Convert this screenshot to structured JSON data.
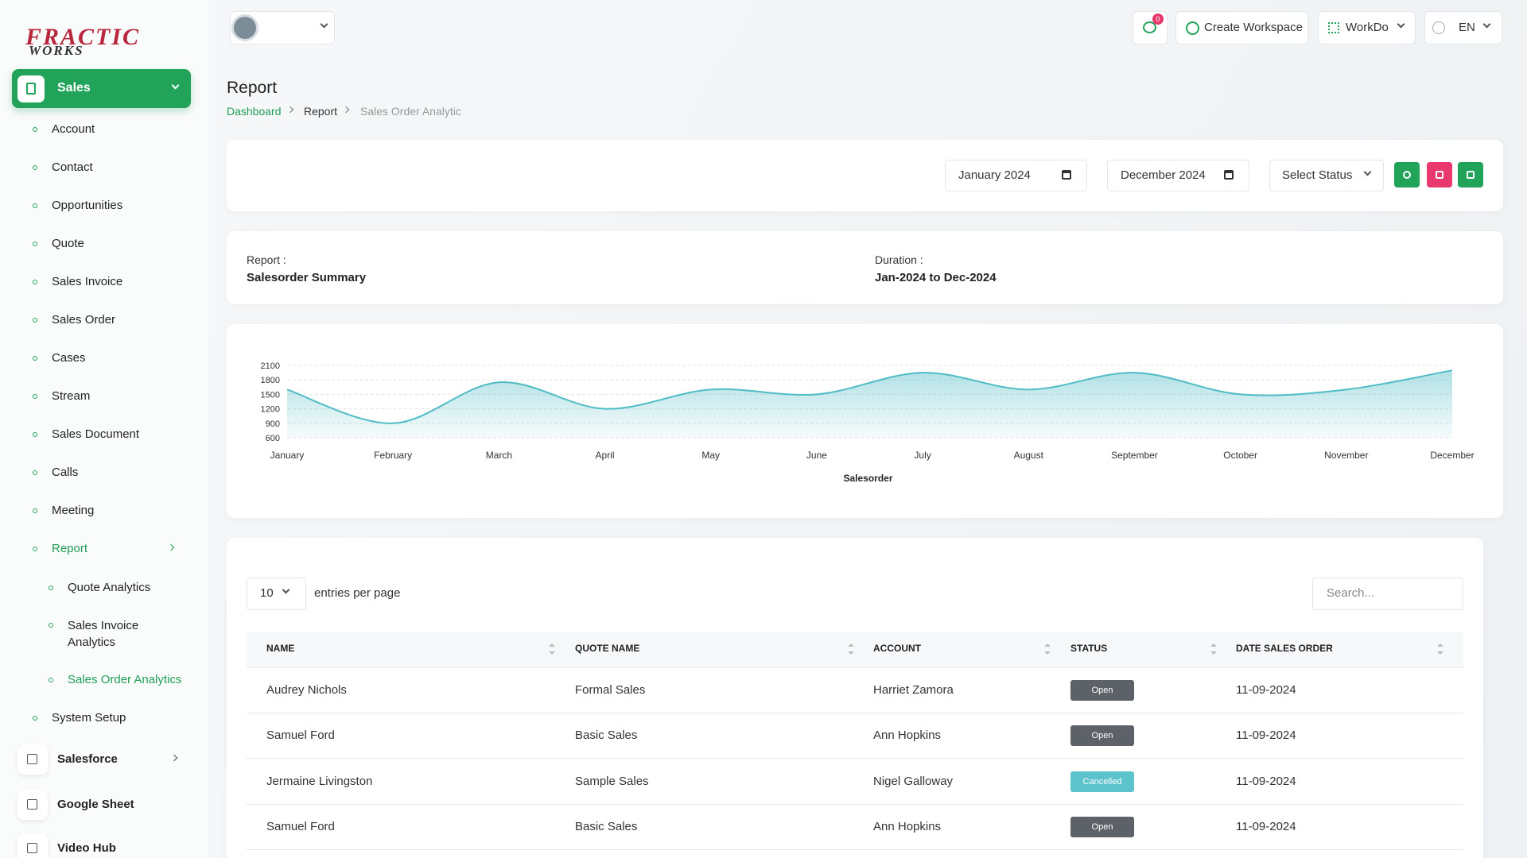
{
  "logo": {
    "line1": "FRACTIC",
    "line2": "WORKS"
  },
  "sidebar": {
    "section": "Sales",
    "items": [
      "Account",
      "Contact",
      "Opportunities",
      "Quote",
      "Sales Invoice",
      "Sales Order",
      "Cases",
      "Stream",
      "Sales Document",
      "Calls",
      "Meeting"
    ],
    "report": "Report",
    "report_items": [
      "Quote Analytics",
      "Sales Invoice Analytics",
      "Sales Order Analytics"
    ],
    "system_setup": "System Setup",
    "modules": [
      "Salesforce",
      "Google Sheet",
      "Video Hub"
    ]
  },
  "header": {
    "notifications": 0,
    "create_workspace": "Create Workspace",
    "workspace": "WorkDo",
    "language": "EN"
  },
  "page": {
    "title": "Report",
    "breadcrumb": [
      "Dashboard",
      "Report",
      "Sales Order Analytic"
    ]
  },
  "filters": {
    "start": "January 2024",
    "end": "December 2024",
    "status": "Select Status"
  },
  "summary": {
    "report_label": "Report :",
    "report_value": "Salesorder Summary",
    "duration_label": "Duration :",
    "duration_value": "Jan-2024 to Dec-2024"
  },
  "chart_data": {
    "type": "area",
    "x_label": "Salesorder",
    "categories": [
      "January",
      "February",
      "March",
      "April",
      "May",
      "June",
      "July",
      "August",
      "September",
      "October",
      "November",
      "December"
    ],
    "values": [
      1600,
      900,
      1750,
      1200,
      1600,
      1500,
      1950,
      1600,
      1950,
      1500,
      1600,
      2000
    ],
    "color": "#4fbcc6",
    "ylim": [
      600,
      2100
    ],
    "yticks": [
      600,
      900,
      1200,
      1500,
      1800,
      2100
    ],
    "grid": true
  },
  "table": {
    "page_size": 10,
    "page_size_label": "entries per page",
    "search_placeholder": "Search...",
    "columns": [
      "NAME",
      "QUOTE NAME",
      "ACCOUNT",
      "STATUS",
      "DATE SALES ORDER"
    ],
    "rows": [
      [
        "Audrey Nichols",
        "Formal Sales",
        "Harriet Zamora",
        "Open",
        "11-09-2024"
      ],
      [
        "Samuel Ford",
        "Basic Sales",
        "Ann Hopkins",
        "Open",
        "11-09-2024"
      ],
      [
        "Jermaine Livingston",
        "Sample Sales",
        "Nigel Galloway",
        "Cancelled",
        "11-09-2024"
      ],
      [
        "Samuel Ford",
        "Basic Sales",
        "Ann Hopkins",
        "Open",
        "11-09-2024"
      ]
    ],
    "status_colors": {
      "Open": "#5d6168",
      "Cancelled": "#5cc3cd"
    }
  }
}
